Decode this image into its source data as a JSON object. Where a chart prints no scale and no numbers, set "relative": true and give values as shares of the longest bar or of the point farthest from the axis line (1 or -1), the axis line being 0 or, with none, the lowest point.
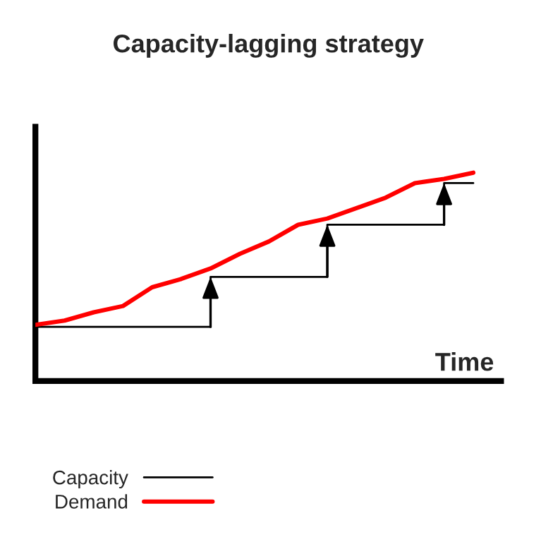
{
  "chart_data": {
    "type": "line",
    "title": "Capacity-lagging strategy",
    "xlabel": "Time",
    "relative": true,
    "categories": [
      null,
      null,
      null,
      null,
      null,
      null,
      null,
      null,
      null,
      null,
      null,
      null,
      null,
      null,
      null,
      null
    ],
    "series": [
      {
        "name": "Capacity",
        "type": "step",
        "color": "#000000",
        "values": [
          0.26,
          0.26,
          0.26,
          0.26,
          0.26,
          0.26,
          0.5,
          0.5,
          0.5,
          0.5,
          0.75,
          0.75,
          0.75,
          0.75,
          0.95,
          0.95
        ]
      },
      {
        "name": "Demand",
        "color": "#ff0000",
        "values": [
          0.27,
          0.29,
          0.33,
          0.36,
          0.45,
          0.49,
          0.54,
          0.61,
          0.67,
          0.75,
          0.78,
          0.83,
          0.88,
          0.95,
          0.97,
          1.0
        ]
      }
    ],
    "legend": "bottom",
    "marker": "none",
    "line_style": "solid"
  }
}
